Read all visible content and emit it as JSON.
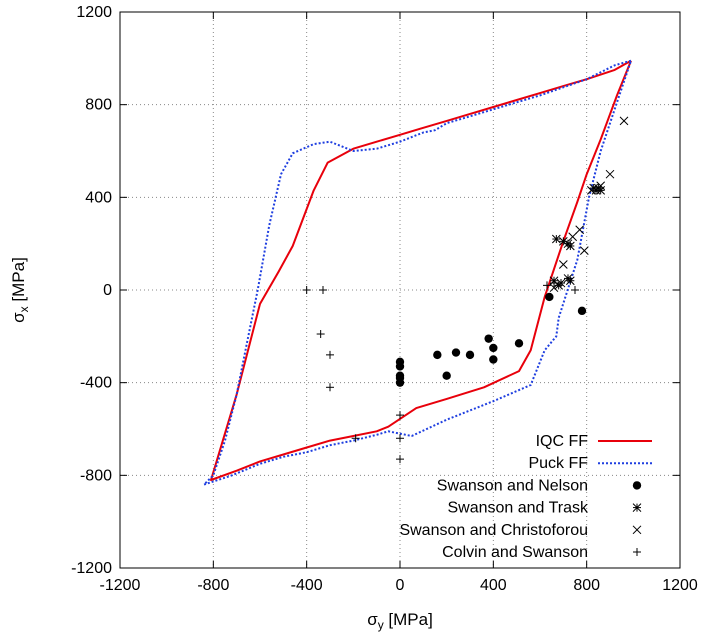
{
  "chart_data": {
    "type": "scatter",
    "xlabel_symbol": "σ",
    "xlabel_sub": "y",
    "xlabel_unit": " [MPa]",
    "ylabel_symbol": "σ",
    "ylabel_sub": "x",
    "ylabel_unit": " [MPa]",
    "xlim": [
      -1200,
      1200
    ],
    "ylim": [
      -1200,
      1200
    ],
    "xticks": [
      -1200,
      -800,
      -400,
      0,
      400,
      800,
      1200
    ],
    "yticks": [
      -1200,
      -800,
      -400,
      0,
      400,
      800,
      1200
    ],
    "xtick_labels": [
      "-1200",
      "-800",
      "-400",
      "0",
      "400",
      "800",
      "1200"
    ],
    "ytick_labels": [
      "-1200",
      "-800",
      "-400",
      "0",
      "400",
      "800",
      "1200"
    ],
    "grid": true,
    "legend_position": "bottom-right",
    "series": [
      {
        "name": "IQC FF",
        "kind": "line",
        "color": "#e8000b",
        "dash": "solid",
        "x": [
          990,
          920,
          800,
          700,
          600,
          500,
          400,
          300,
          200,
          100,
          0,
          -100,
          -200,
          -310,
          -370,
          -460,
          -520,
          -600,
          -700,
          -810,
          -700,
          -600,
          -500,
          -400,
          -300,
          -200,
          -100,
          -50,
          70,
          200,
          360,
          510,
          560,
          620,
          700,
          760,
          800,
          860,
          930,
          990
        ],
        "y": [
          990,
          950,
          910,
          880,
          850,
          820,
          790,
          760,
          730,
          700,
          670,
          640,
          610,
          550,
          430,
          190,
          80,
          -60,
          -450,
          -820,
          -780,
          -740,
          -710,
          -680,
          -650,
          -630,
          -610,
          -590,
          -510,
          -470,
          -420,
          -350,
          -260,
          -30,
          210,
          380,
          500,
          650,
          840,
          990
        ]
      },
      {
        "name": "Puck FF",
        "kind": "line",
        "color": "#1f3fe0",
        "dash": "dotted",
        "x": [
          990,
          920,
          800,
          700,
          600,
          500,
          400,
          300,
          200,
          150,
          100,
          0,
          -100,
          -200,
          -300,
          -370,
          -460,
          -510,
          -560,
          -610,
          -650,
          -700,
          -750,
          -800,
          -840,
          -720,
          -600,
          -500,
          -400,
          -300,
          -200,
          -100,
          -50,
          50,
          200,
          400,
          560,
          620,
          670,
          680,
          760,
          810,
          860,
          930,
          990
        ],
        "y": [
          990,
          970,
          910,
          875,
          840,
          810,
          780,
          750,
          720,
          690,
          680,
          640,
          610,
          600,
          640,
          630,
          590,
          500,
          280,
          0,
          -200,
          -450,
          -650,
          -800,
          -840,
          -800,
          -750,
          -720,
          -700,
          -670,
          -650,
          -625,
          -610,
          -630,
          -560,
          -480,
          -410,
          -260,
          -200,
          -120,
          130,
          400,
          600,
          810,
          990
        ]
      },
      {
        "name": "Swanson and Nelson",
        "kind": "markers",
        "marker": "dot",
        "color": "#000000",
        "x": [
          640,
          780,
          510,
          380,
          400,
          400,
          300,
          240,
          160,
          200,
          0,
          0,
          0,
          0,
          0
        ],
        "y": [
          -30,
          -90,
          -230,
          -210,
          -250,
          -300,
          -280,
          -270,
          -280,
          -370,
          -310,
          -330,
          -370,
          -380,
          -400
        ]
      },
      {
        "name": "Swanson and Trask",
        "kind": "markers",
        "marker": "asterisk",
        "color": "#000000",
        "x": [
          670,
          700,
          720,
          730,
          730,
          720,
          690,
          680,
          660,
          830,
          840,
          850,
          860
        ],
        "y": [
          220,
          210,
          200,
          190,
          40,
          50,
          30,
          20,
          40,
          440,
          430,
          440,
          430
        ]
      },
      {
        "name": "Swanson and Christoforou",
        "kind": "markers",
        "marker": "cross",
        "color": "#000000",
        "x": [
          960,
          900,
          860,
          820,
          770,
          790,
          700,
          660,
          740
        ],
        "y": [
          730,
          500,
          450,
          430,
          260,
          170,
          110,
          10,
          230
        ]
      },
      {
        "name": "Colvin and Swanson",
        "kind": "markers",
        "marker": "plus",
        "color": "#000000",
        "x": [
          -400,
          -330,
          -340,
          -300,
          -300,
          -190,
          0,
          0,
          0,
          660,
          630,
          750
        ],
        "y": [
          0,
          0,
          -190,
          -280,
          -420,
          -640,
          -540,
          -640,
          -730,
          30,
          20,
          0
        ]
      }
    ]
  }
}
